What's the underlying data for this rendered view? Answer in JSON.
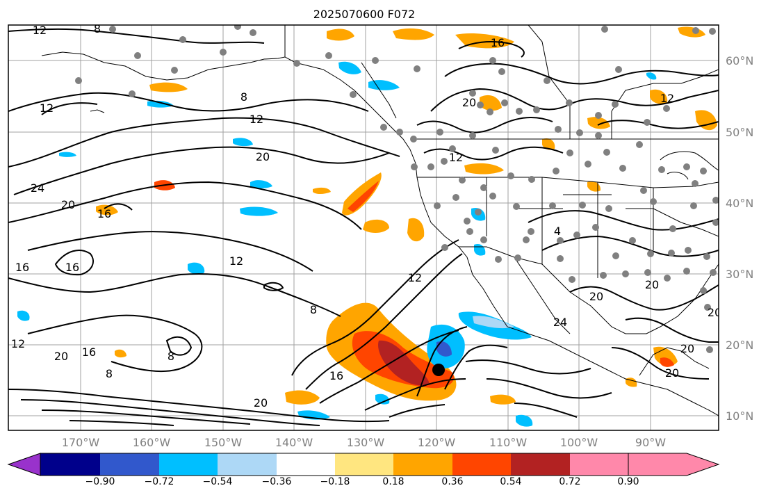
{
  "title": "2025070600 F072",
  "map": {
    "lon_labels": [
      "170°W",
      "160°W",
      "150°W",
      "140°W",
      "130°W",
      "120°W",
      "110°W",
      "100°W",
      "90°W"
    ],
    "lat_labels": [
      "60°N",
      "50°N",
      "40°N",
      "30°N",
      "20°N",
      "10°N"
    ],
    "contour_labels": [
      "12",
      "8",
      "16",
      "8",
      "12",
      "12",
      "20",
      "24",
      "20",
      "16",
      "16",
      "12",
      "20",
      "12",
      "8",
      "16",
      "12",
      "16",
      "20",
      "16",
      "8",
      "12",
      "20",
      "24",
      "20",
      "20",
      "20",
      "20",
      "20",
      "8",
      "12",
      "4"
    ],
    "marker": "storm-center-dot"
  },
  "colorbar": {
    "tick_labels": [
      "−0.90",
      "−0.72",
      "−0.54",
      "−0.36",
      "−0.18",
      "0.18",
      "0.36",
      "0.54",
      "0.72",
      "0.90"
    ],
    "colors": [
      "#9932cc",
      "#00008b",
      "#3158cc",
      "#00bfff",
      "#add8f6",
      "#ffffff",
      "#ffe680",
      "#ffa500",
      "#ff4500",
      "#b22222",
      "#ff88aa"
    ]
  }
}
